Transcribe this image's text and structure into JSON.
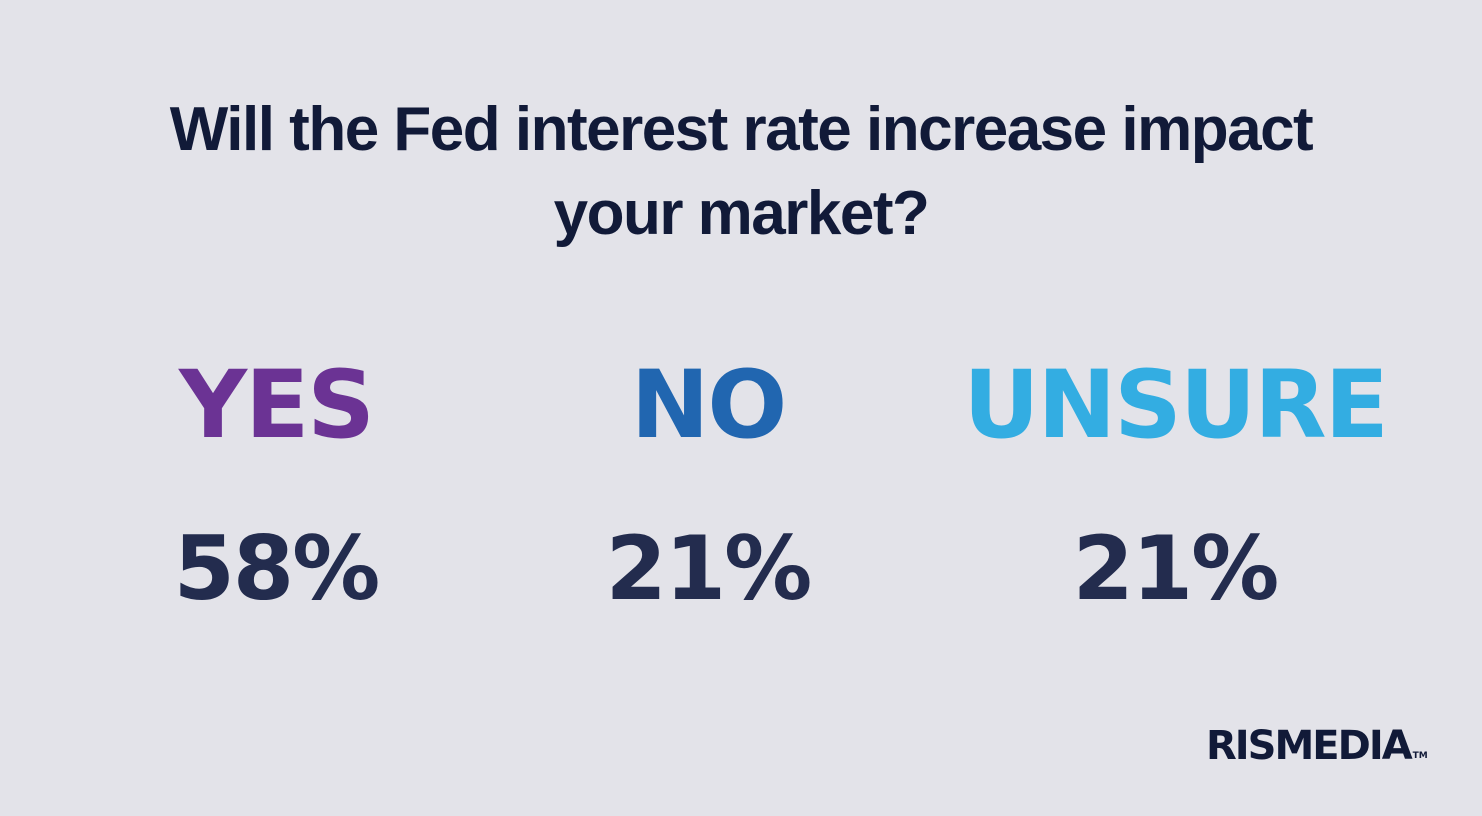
{
  "question": {
    "line1": "Will the Fed interest rate increase impact",
    "line2": "your market?"
  },
  "options": [
    {
      "label": "YES",
      "percent": "58%",
      "color": "#6b3394"
    },
    {
      "label": "NO",
      "percent": "21%",
      "color": "#2166b0"
    },
    {
      "label": "UNSURE",
      "percent": "21%",
      "color": "#33ade2"
    }
  ],
  "logo": {
    "text": "RISMEDIA",
    "trademark": "TM"
  },
  "colors": {
    "background": "#e3e3e9",
    "heading": "#111a38",
    "percent": "#232c4e"
  }
}
